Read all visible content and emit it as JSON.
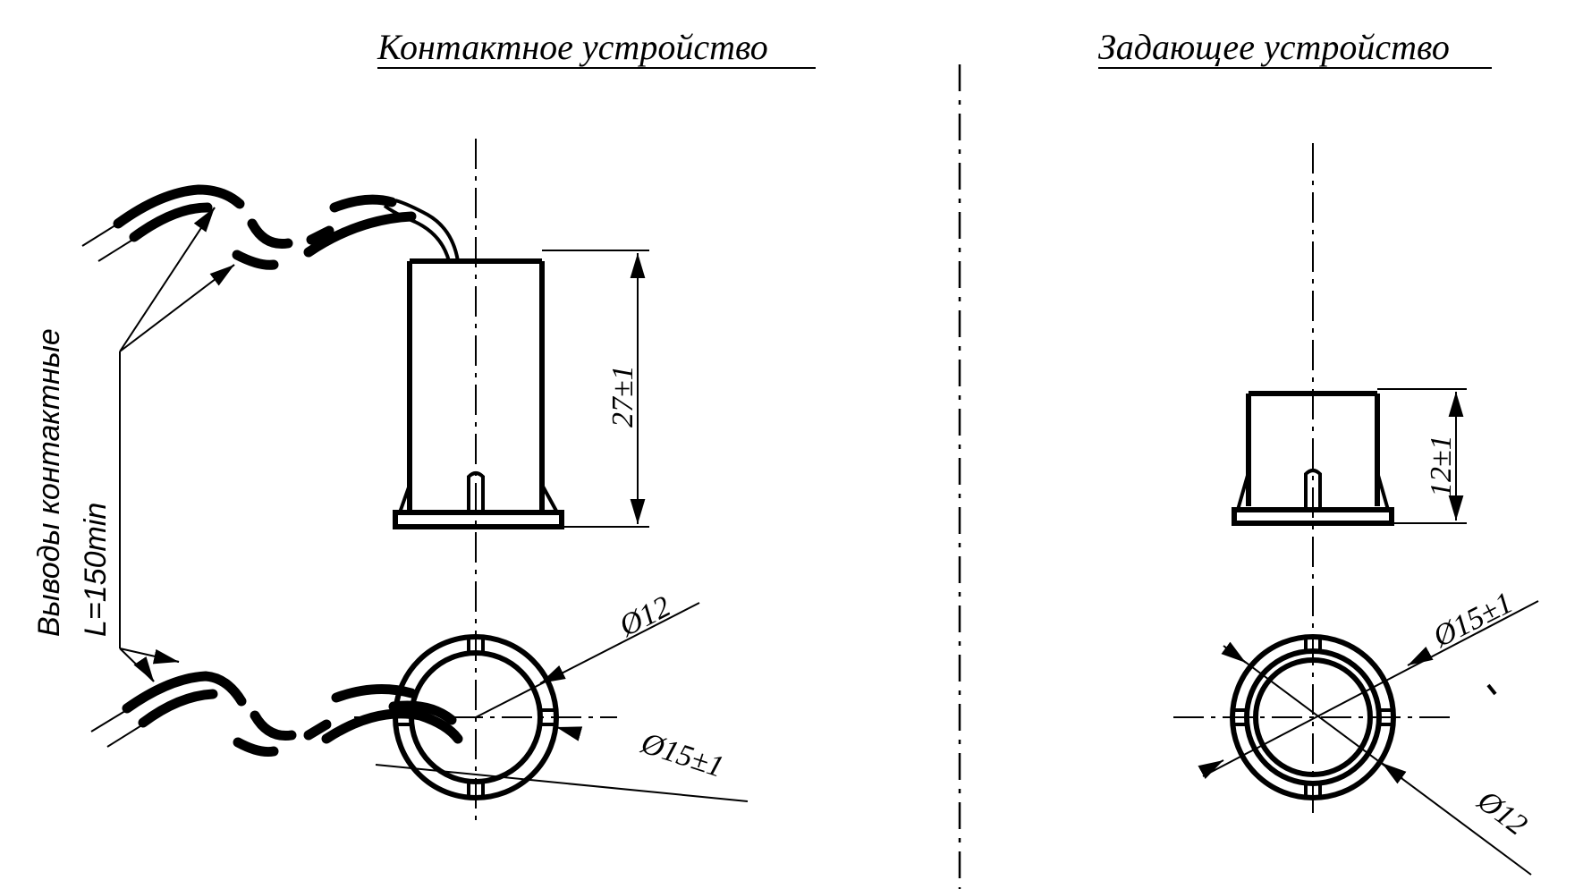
{
  "titles": {
    "contact_device": "Контактное устройство",
    "setting_device": "Задающее устройство"
  },
  "contact_device": {
    "height_dim": "27±1",
    "inner_diameter": "Ø12",
    "outer_diameter": "Ø15±1"
  },
  "setting_device": {
    "height_dim": "12±1",
    "outer_diameter": "Ø15±1",
    "inner_diameter": "Ø12"
  },
  "leads_note": {
    "line1": "Выводы контактные",
    "line2": "L=150min"
  }
}
